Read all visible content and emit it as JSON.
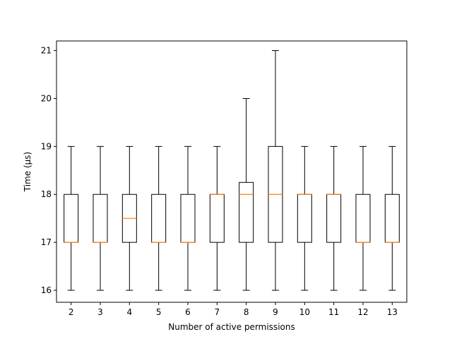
{
  "chart_data": {
    "type": "box",
    "title": "",
    "xlabel": "Number of active permissions",
    "ylabel": "Time (µs)",
    "ylim": [
      15.75,
      21.2
    ],
    "yticks": [
      16,
      17,
      18,
      19,
      20,
      21
    ],
    "grid": false,
    "legend": "none",
    "categories": [
      "2",
      "3",
      "4",
      "5",
      "6",
      "7",
      "8",
      "9",
      "10",
      "11",
      "12",
      "13"
    ],
    "boxes": [
      {
        "label": "2",
        "whislo": 16,
        "q1": 17,
        "med": 17,
        "q3": 18,
        "whishi": 19
      },
      {
        "label": "3",
        "whislo": 16,
        "q1": 17,
        "med": 17,
        "q3": 18,
        "whishi": 19
      },
      {
        "label": "4",
        "whislo": 16,
        "q1": 17,
        "med": 17.5,
        "q3": 18,
        "whishi": 19
      },
      {
        "label": "5",
        "whislo": 16,
        "q1": 17,
        "med": 17,
        "q3": 18,
        "whishi": 19
      },
      {
        "label": "6",
        "whislo": 16,
        "q1": 17,
        "med": 17,
        "q3": 18,
        "whishi": 19
      },
      {
        "label": "7",
        "whislo": 16,
        "q1": 17,
        "med": 18,
        "q3": 18,
        "whishi": 19
      },
      {
        "label": "8",
        "whislo": 16,
        "q1": 17,
        "med": 18,
        "q3": 18.25,
        "whishi": 20
      },
      {
        "label": "9",
        "whislo": 16,
        "q1": 17,
        "med": 18,
        "q3": 19,
        "whishi": 21
      },
      {
        "label": "10",
        "whislo": 16,
        "q1": 17,
        "med": 18,
        "q3": 18,
        "whishi": 19
      },
      {
        "label": "11",
        "whislo": 16,
        "q1": 17,
        "med": 18,
        "q3": 18,
        "whishi": 19
      },
      {
        "label": "12",
        "whislo": 16,
        "q1": 17,
        "med": 17,
        "q3": 18,
        "whishi": 19
      },
      {
        "label": "13",
        "whislo": 16,
        "q1": 17,
        "med": 17,
        "q3": 18,
        "whishi": 19
      }
    ],
    "colors": {
      "box": "#000000",
      "median": "#ff7f0e",
      "axis": "#000000"
    }
  }
}
